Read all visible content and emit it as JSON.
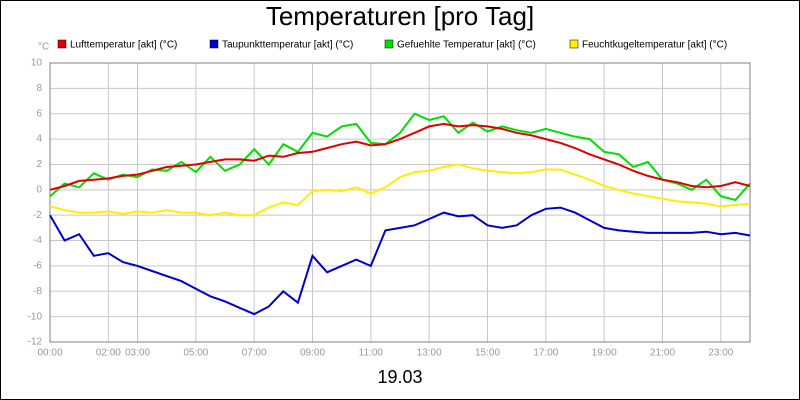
{
  "chart_data": {
    "type": "line",
    "title": "Temperaturen [pro Tag]",
    "y_unit": "°C",
    "x_label": "19.03",
    "x": [
      0,
      0.5,
      1,
      1.5,
      2,
      2.5,
      3,
      3.5,
      4,
      4.5,
      5,
      5.5,
      6,
      6.5,
      7,
      7.5,
      8,
      8.5,
      9,
      9.5,
      10,
      10.5,
      11,
      11.5,
      12,
      12.5,
      13,
      13.5,
      14,
      14.5,
      15,
      15.5,
      16,
      16.5,
      17,
      17.5,
      18,
      18.5,
      19,
      19.5,
      20,
      20.5,
      21,
      21.5,
      22,
      22.5,
      23,
      23.5,
      24
    ],
    "xlim": [
      0,
      24
    ],
    "xticks": [
      {
        "value": 0,
        "label": "00:00"
      },
      {
        "value": 2,
        "label": "02:00"
      },
      {
        "value": 3,
        "label": "03:00"
      },
      {
        "value": 5,
        "label": "05:00"
      },
      {
        "value": 7,
        "label": "07:00"
      },
      {
        "value": 9,
        "label": "09:00"
      },
      {
        "value": 11,
        "label": "11:00"
      },
      {
        "value": 13,
        "label": "13:00"
      },
      {
        "value": 15,
        "label": "15:00"
      },
      {
        "value": 17,
        "label": "17:00"
      },
      {
        "value": 19,
        "label": "19:00"
      },
      {
        "value": 21,
        "label": "21:00"
      },
      {
        "value": 23,
        "label": "23:00"
      }
    ],
    "ylim": [
      -12,
      10
    ],
    "yticks": [
      -12,
      -10,
      -8,
      -6,
      -4,
      -2,
      0,
      2,
      4,
      6,
      8,
      10
    ],
    "grid": true,
    "legend": "top",
    "series": [
      {
        "name": "Lufttemperatur [akt] (°C)",
        "color": "#e00000",
        "values": [
          0,
          0.3,
          0.7,
          0.8,
          0.9,
          1.1,
          1.2,
          1.5,
          1.8,
          1.9,
          2.0,
          2.2,
          2.4,
          2.4,
          2.3,
          2.7,
          2.6,
          2.9,
          3.0,
          3.3,
          3.6,
          3.8,
          3.5,
          3.6,
          4.0,
          4.5,
          5.0,
          5.2,
          5.0,
          5.1,
          5.0,
          4.8,
          4.5,
          4.3,
          4.0,
          3.7,
          3.3,
          2.8,
          2.4,
          2.0,
          1.5,
          1.1,
          0.8,
          0.6,
          0.3,
          0.2,
          0.3,
          0.6,
          0.3
        ]
      },
      {
        "name": "Taupunkttemperatur [akt] (°C)",
        "color": "#0000cc",
        "values": [
          -2.0,
          -4.0,
          -3.5,
          -5.2,
          -5.0,
          -5.7,
          -6.0,
          -6.4,
          -6.8,
          -7.2,
          -7.8,
          -8.4,
          -8.8,
          -9.3,
          -9.8,
          -9.2,
          -8.0,
          -8.9,
          -5.2,
          -6.5,
          -6.0,
          -5.5,
          -6.0,
          -3.2,
          -3.0,
          -2.8,
          -2.3,
          -1.8,
          -2.1,
          -2.0,
          -2.8,
          -3.0,
          -2.8,
          -2.0,
          -1.5,
          -1.4,
          -1.8,
          -2.4,
          -3.0,
          -3.2,
          -3.3,
          -3.4,
          -3.4,
          -3.4,
          -3.4,
          -3.3,
          -3.5,
          -3.4,
          -3.6
        ]
      },
      {
        "name": "Gefuehlte Temperatur [akt] (°C)",
        "color": "#00e000",
        "values": [
          -0.5,
          0.5,
          0.2,
          1.3,
          0.8,
          1.2,
          1.0,
          1.6,
          1.5,
          2.2,
          1.4,
          2.6,
          1.5,
          2.0,
          3.2,
          2.0,
          3.6,
          3.0,
          4.5,
          4.2,
          5.0,
          5.2,
          3.7,
          3.6,
          4.5,
          6.0,
          5.5,
          5.8,
          4.5,
          5.3,
          4.6,
          5.0,
          4.7,
          4.5,
          4.8,
          4.5,
          4.2,
          4.0,
          3.0,
          2.8,
          1.8,
          2.2,
          0.8,
          0.5,
          0.0,
          0.8,
          -0.5,
          -0.8,
          0.5
        ]
      },
      {
        "name": "Feuchtkugeltemperatur [akt] (°C)",
        "color": "#ffee00",
        "values": [
          -1.3,
          -1.6,
          -1.8,
          -1.8,
          -1.7,
          -1.9,
          -1.7,
          -1.8,
          -1.6,
          -1.8,
          -1.8,
          -2.0,
          -1.8,
          -2.0,
          -2.0,
          -1.4,
          -1.0,
          -1.2,
          -0.1,
          0.0,
          -0.1,
          0.2,
          -0.3,
          0.2,
          1.0,
          1.4,
          1.5,
          1.8,
          2.0,
          1.7,
          1.5,
          1.4,
          1.3,
          1.4,
          1.6,
          1.6,
          1.2,
          0.8,
          0.3,
          0.0,
          -0.3,
          -0.5,
          -0.7,
          -0.9,
          -1.0,
          -1.1,
          -1.3,
          -1.2,
          -1.1
        ]
      }
    ]
  }
}
